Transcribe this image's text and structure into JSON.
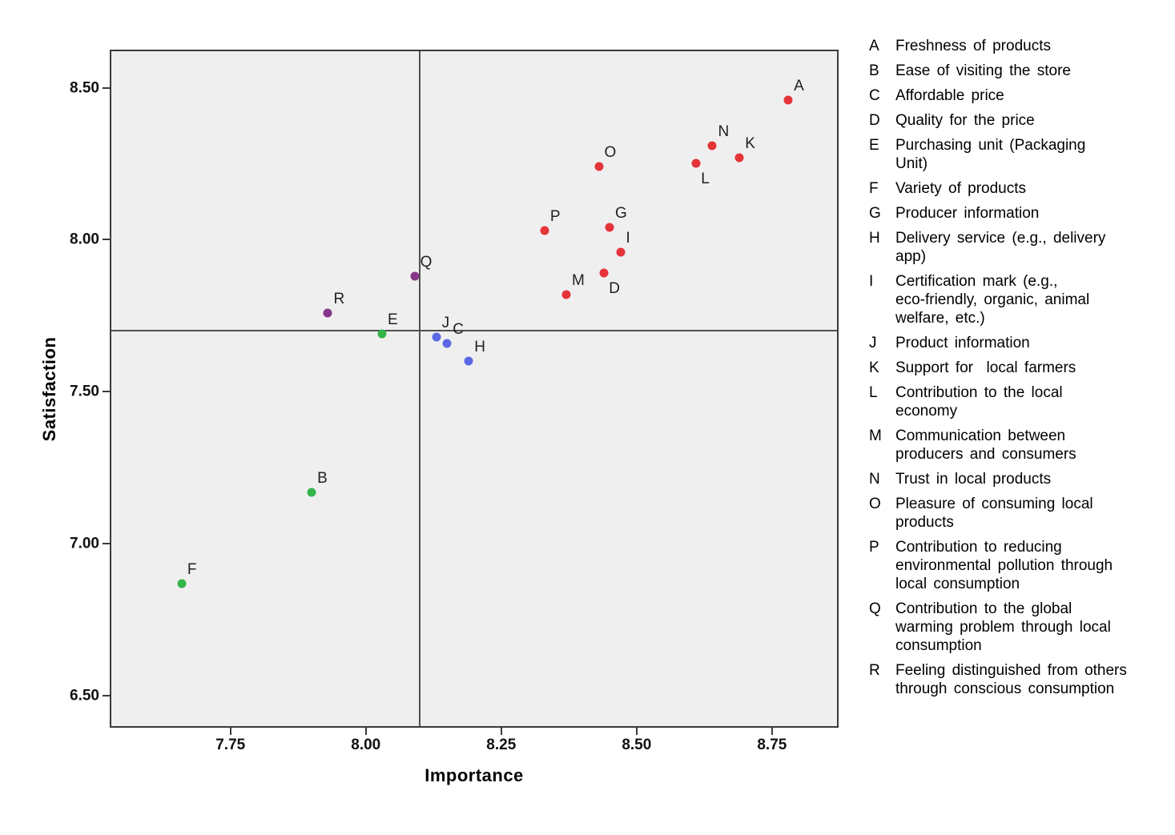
{
  "figure": {
    "background": "#ffffff",
    "plot_background": "#efefef",
    "frame_color": "#3a3a3a",
    "reference_line_color": "#505050"
  },
  "chart_data": {
    "type": "scatter",
    "title": "",
    "xlabel": "Importance",
    "ylabel": "Satisfaction",
    "xlim": [
      7.53,
      8.87
    ],
    "ylim": [
      6.4,
      8.62
    ],
    "grid": false,
    "x_ticks": {
      "values": [
        7.75,
        8.0,
        8.25,
        8.5,
        8.75
      ],
      "labels": [
        "7.75",
        "8.00",
        "8.25",
        "8.50",
        "8.75"
      ]
    },
    "y_ticks": {
      "values": [
        8.5,
        8.0,
        7.5,
        7.0,
        6.5
      ],
      "labels": [
        "8.50",
        "8.00",
        "7.50",
        "7.00",
        "6.50"
      ]
    },
    "reference_lines": {
      "vertical_x": 8.1,
      "horizontal_y": 7.7
    },
    "group_colors": {
      "high_importance_high_satisfaction": "#e5333a",
      "high_importance_low_satisfaction": "#5c67e5",
      "low_importance_low_satisfaction": "#35b44a",
      "low_importance_high_satisfaction": "#863689"
    },
    "points": [
      {
        "label": "A",
        "x": 8.78,
        "y": 8.46,
        "color": "#e5333a",
        "label_pos": "above"
      },
      {
        "label": "B",
        "x": 7.9,
        "y": 7.17,
        "color": "#35b44a",
        "label_pos": "above"
      },
      {
        "label": "C",
        "x": 8.15,
        "y": 7.66,
        "color": "#5c67e5",
        "label_pos": "above"
      },
      {
        "label": "D",
        "x": 8.44,
        "y": 7.89,
        "color": "#e5333a",
        "label_pos": "below"
      },
      {
        "label": "E",
        "x": 8.03,
        "y": 7.69,
        "color": "#35b44a",
        "label_pos": "above"
      },
      {
        "label": "F",
        "x": 7.66,
        "y": 6.87,
        "color": "#35b44a",
        "label_pos": "above"
      },
      {
        "label": "G",
        "x": 8.45,
        "y": 8.04,
        "color": "#e5333a",
        "label_pos": "above"
      },
      {
        "label": "H",
        "x": 8.19,
        "y": 7.6,
        "color": "#5c67e5",
        "label_pos": "above"
      },
      {
        "label": "I",
        "x": 8.47,
        "y": 7.96,
        "color": "#e5333a",
        "label_pos": "above"
      },
      {
        "label": "J",
        "x": 8.13,
        "y": 7.68,
        "color": "#5c67e5",
        "label_pos": "above"
      },
      {
        "label": "K",
        "x": 8.69,
        "y": 8.27,
        "color": "#e5333a",
        "label_pos": "above"
      },
      {
        "label": "L",
        "x": 8.61,
        "y": 8.25,
        "color": "#e5333a",
        "label_pos": "below"
      },
      {
        "label": "M",
        "x": 8.37,
        "y": 7.82,
        "color": "#e5333a",
        "label_pos": "above"
      },
      {
        "label": "N",
        "x": 8.64,
        "y": 8.31,
        "color": "#e5333a",
        "label_pos": "above"
      },
      {
        "label": "O",
        "x": 8.43,
        "y": 8.24,
        "color": "#e5333a",
        "label_pos": "above"
      },
      {
        "label": "P",
        "x": 8.33,
        "y": 8.03,
        "color": "#e5333a",
        "label_pos": "above"
      },
      {
        "label": "Q",
        "x": 8.09,
        "y": 7.88,
        "color": "#863689",
        "label_pos": "above"
      },
      {
        "label": "R",
        "x": 7.93,
        "y": 7.76,
        "color": "#863689",
        "label_pos": "above"
      }
    ]
  },
  "legend": {
    "items": [
      {
        "key": "A",
        "text": "Freshness of products"
      },
      {
        "key": "B",
        "text": "Ease of visiting the store"
      },
      {
        "key": "C",
        "text": "Affordable price"
      },
      {
        "key": "D",
        "text": "Quality for the price"
      },
      {
        "key": "E",
        "text": "Purchasing unit (Packaging\nUnit)"
      },
      {
        "key": "F",
        "text": "Variety of products"
      },
      {
        "key": "G",
        "text": "Producer information"
      },
      {
        "key": "H",
        "text": "Delivery service (e.g., delivery\napp)"
      },
      {
        "key": "I",
        "text": "Certification mark (e.g.,\neco-friendly, organic, animal\nwelfare, etc.)"
      },
      {
        "key": "J",
        "text": "Product information"
      },
      {
        "key": "K",
        "text": "Support for  local farmers"
      },
      {
        "key": "L",
        "text": "Contribution to the local\neconomy"
      },
      {
        "key": "M",
        "text": "Communication between\nproducers and consumers"
      },
      {
        "key": "N",
        "text": "Trust in local products"
      },
      {
        "key": "O",
        "text": "Pleasure of consuming local\nproducts"
      },
      {
        "key": "P",
        "text": "Contribution to reducing\nenvironmental pollution through\nlocal consumption"
      },
      {
        "key": "Q",
        "text": "Contribution to the global\nwarming problem through local\nconsumption"
      },
      {
        "key": "R",
        "text": "Feeling distinguished from others\nthrough conscious consumption"
      }
    ]
  }
}
